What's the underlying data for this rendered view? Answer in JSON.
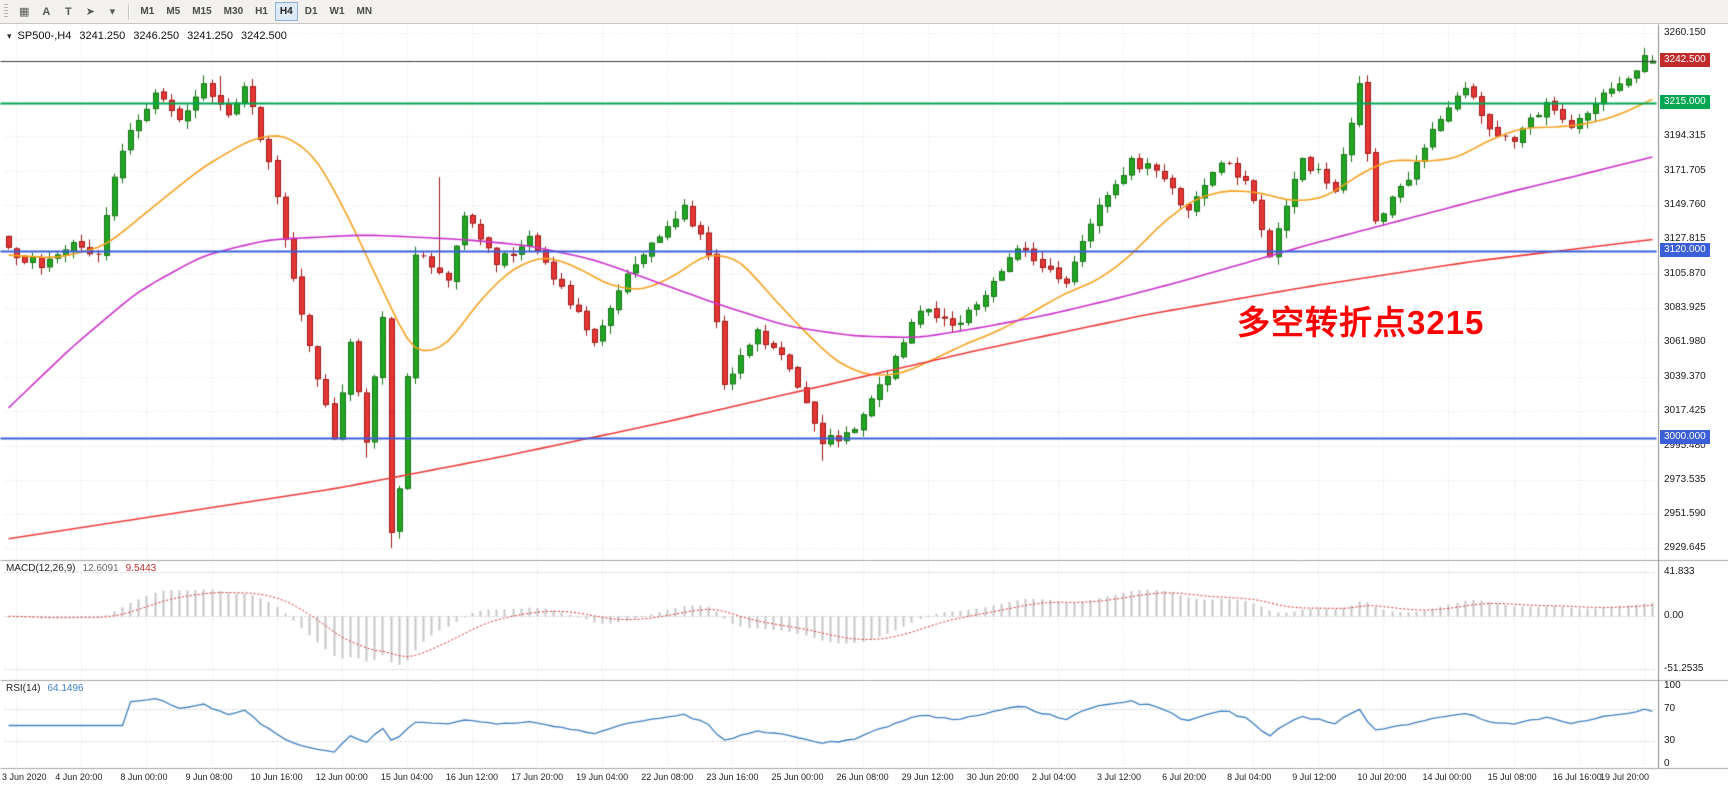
{
  "toolbar": {
    "icon_buttons": [
      {
        "name": "chart-grid-icon",
        "glyph": "▦"
      },
      {
        "name": "text-a-button",
        "glyph": "A"
      },
      {
        "name": "text-t-button",
        "glyph": "T"
      },
      {
        "name": "cursor-tool-icon",
        "glyph": "➤"
      },
      {
        "name": "tools-caret-icon",
        "glyph": "▾"
      }
    ],
    "timeframes": [
      {
        "label": "M1",
        "selected": false
      },
      {
        "label": "M5",
        "selected": false
      },
      {
        "label": "M15",
        "selected": false
      },
      {
        "label": "M30",
        "selected": false
      },
      {
        "label": "H1",
        "selected": false
      },
      {
        "label": "H4",
        "selected": true
      },
      {
        "label": "D1",
        "selected": false
      },
      {
        "label": "W1",
        "selected": false
      },
      {
        "label": "MN",
        "selected": false
      }
    ]
  },
  "chart_header": {
    "caret": "▾",
    "symbol": "SP500-,H4",
    "open": "3241.250",
    "high": "3246.250",
    "low": "3241.250",
    "close": "3242.500"
  },
  "annotation": {
    "text": "多空转折点3215",
    "color": "#FF0000"
  },
  "panes": {
    "macd": {
      "name": "MACD(12,26,9)",
      "value_main": "12.6091",
      "value_signal": "9.5443"
    },
    "rsi": {
      "name": "RSI(14)",
      "value": "64.1496"
    }
  },
  "price_axis": {
    "plain_labels": [
      {
        "text": "3260.150",
        "price": 3260.15
      },
      {
        "text": "3194.315",
        "price": 3194.315
      },
      {
        "text": "3171.705",
        "price": 3171.705
      },
      {
        "text": "3149.760",
        "price": 3149.76
      },
      {
        "text": "3127.815",
        "price": 3127.815
      },
      {
        "text": "3105.870",
        "price": 3105.87
      },
      {
        "text": "3083.925",
        "price": 3083.925
      },
      {
        "text": "3061.980",
        "price": 3061.98
      },
      {
        "text": "3039.370",
        "price": 3039.37
      },
      {
        "text": "3017.425",
        "price": 3017.425
      },
      {
        "text": "2995.480",
        "price": 2995.48
      },
      {
        "text": "2973.535",
        "price": 2973.535
      },
      {
        "text": "2951.590",
        "price": 2951.59
      },
      {
        "text": "2929.645",
        "price": 2929.645
      }
    ],
    "boxed_labels": [
      {
        "text": "3242.500",
        "price": 3242.5,
        "bg": "#C02B2B",
        "role": "current-price"
      },
      {
        "text": "3215.000",
        "price": 3215.0,
        "bg": "#00A651",
        "role": "green-level"
      },
      {
        "text": "3120.000",
        "price": 3120.0,
        "bg": "#3A5FD9",
        "role": "blue-level"
      },
      {
        "text": "3000.000",
        "price": 3000.0,
        "bg": "#3A5FD9",
        "role": "blue-level"
      }
    ]
  },
  "macd_axis": [
    {
      "text": "41.833",
      "value": 41.833
    },
    {
      "text": "0.00",
      "value": 0
    },
    {
      "text": "-51.2535",
      "value": -51.2535
    }
  ],
  "rsi_axis": [
    {
      "text": "100",
      "value": 100
    },
    {
      "text": "70",
      "value": 70
    },
    {
      "text": "30",
      "value": 30
    },
    {
      "text": "0",
      "value": 0
    }
  ],
  "date_axis": [
    "3 Jun 2020",
    "4 Jun 20:00",
    "8 Jun 00:00",
    "9 Jun 08:00",
    "10 Jun 16:00",
    "12 Jun 00:00",
    "15 Jun 04:00",
    "16 Jun 12:00",
    "17 Jun 20:00",
    "19 Jun 04:00",
    "22 Jun 08:00",
    "23 Jun 16:00",
    "25 Jun 00:00",
    "26 Jun 08:00",
    "29 Jun 12:00",
    "30 Jun 20:00",
    "2 Jul 04:00",
    "3 Jul 12:00",
    "6 Jul 20:00",
    "8 Jul 04:00",
    "9 Jul 12:00",
    "10 Jul 20:00",
    "14 Jul 00:00",
    "15 Jul 08:00",
    "16 Jul 16:00",
    "19 Jul 20:00"
  ],
  "colors": {
    "up": "#23A523",
    "up_border": "#157515",
    "down": "#E53535",
    "down_border": "#A01818",
    "ma_fast": "#F6A11F",
    "ma_medium": "#CC33CC",
    "ma_slow": "#EF3B3B",
    "level_green": "#00A651",
    "level_blue": "#3A5FD9",
    "bid_line": "#3C3C3C",
    "grid": "#E2E2E2",
    "macd_hist": "#C6C6C6",
    "macd_signal": "#E03030",
    "rsi_line": "#3E7FC1"
  },
  "chart_data": {
    "type": "candlestick",
    "symbol": "SP500-",
    "timeframe": "H4",
    "title": "SP500-,H4",
    "ohlc_current": {
      "open": 3241.25,
      "high": 3246.25,
      "low": 3241.25,
      "close": 3242.5
    },
    "price_range": [
      2922,
      3266
    ],
    "bars_total": 203,
    "seed": 7,
    "close_anchors": [
      [
        0,
        3123
      ],
      [
        4,
        3110
      ],
      [
        8,
        3126
      ],
      [
        11,
        3118
      ],
      [
        13,
        3168
      ],
      [
        15,
        3198
      ],
      [
        18,
        3222
      ],
      [
        21,
        3205
      ],
      [
        24,
        3228
      ],
      [
        27,
        3208
      ],
      [
        29,
        3226
      ],
      [
        32,
        3178
      ],
      [
        34,
        3128
      ],
      [
        37,
        3060
      ],
      [
        39,
        3022
      ],
      [
        40,
        3000
      ],
      [
        42,
        3062
      ],
      [
        44,
        2998
      ],
      [
        46,
        3078
      ],
      [
        47,
        2940
      ],
      [
        48,
        2968
      ],
      [
        50,
        3118
      ],
      [
        54,
        3102
      ],
      [
        56,
        3143
      ],
      [
        60,
        3112
      ],
      [
        64,
        3130
      ],
      [
        68,
        3098
      ],
      [
        72,
        3062
      ],
      [
        75,
        3095
      ],
      [
        78,
        3118
      ],
      [
        83,
        3150
      ],
      [
        86,
        3118
      ],
      [
        88,
        3035
      ],
      [
        92,
        3070
      ],
      [
        96,
        3045
      ],
      [
        100,
        2997
      ],
      [
        104,
        3006
      ],
      [
        108,
        3040
      ],
      [
        112,
        3082
      ],
      [
        116,
        3073
      ],
      [
        120,
        3092
      ],
      [
        124,
        3122
      ],
      [
        127,
        3110
      ],
      [
        130,
        3100
      ],
      [
        134,
        3150
      ],
      [
        138,
        3180
      ],
      [
        142,
        3167
      ],
      [
        145,
        3147
      ],
      [
        149,
        3177
      ],
      [
        152,
        3166
      ],
      [
        155,
        3117
      ],
      [
        159,
        3180
      ],
      [
        163,
        3159
      ],
      [
        166,
        3228
      ],
      [
        168,
        3140
      ],
      [
        172,
        3166
      ],
      [
        176,
        3205
      ],
      [
        179,
        3225
      ],
      [
        182,
        3199
      ],
      [
        185,
        3191
      ],
      [
        189,
        3216
      ],
      [
        192,
        3200
      ],
      [
        196,
        3222
      ],
      [
        199,
        3231
      ],
      [
        201,
        3246
      ],
      [
        202,
        3242.5
      ]
    ],
    "spikes": [
      {
        "bar": 26,
        "high": 3233
      },
      {
        "bar": 44,
        "low": 2988
      },
      {
        "bar": 47,
        "low": 2930
      },
      {
        "bar": 53,
        "high": 3168
      },
      {
        "bar": 100,
        "low": 2986
      },
      {
        "bar": 166,
        "high": 3233
      },
      {
        "bar": 201,
        "high": 3251
      }
    ],
    "levels": {
      "green_resistance": 3215.0,
      "blue_supports": [
        3120.0,
        3000.0
      ],
      "bid_line": 3242.5
    },
    "moving_averages": [
      {
        "name": "ma-fast-orange",
        "anchors": [
          [
            0,
            3118
          ],
          [
            6,
            3116
          ],
          [
            12,
            3124
          ],
          [
            18,
            3150
          ],
          [
            24,
            3175
          ],
          [
            30,
            3193
          ],
          [
            34,
            3196
          ],
          [
            38,
            3180
          ],
          [
            42,
            3140
          ],
          [
            46,
            3095
          ],
          [
            50,
            3052
          ],
          [
            54,
            3060
          ],
          [
            58,
            3090
          ],
          [
            62,
            3110
          ],
          [
            66,
            3118
          ],
          [
            70,
            3110
          ],
          [
            74,
            3098
          ],
          [
            78,
            3095
          ],
          [
            82,
            3105
          ],
          [
            86,
            3120
          ],
          [
            90,
            3115
          ],
          [
            94,
            3090
          ],
          [
            98,
            3068
          ],
          [
            102,
            3048
          ],
          [
            106,
            3040
          ],
          [
            110,
            3042
          ],
          [
            114,
            3052
          ],
          [
            118,
            3062
          ],
          [
            122,
            3070
          ],
          [
            126,
            3082
          ],
          [
            130,
            3094
          ],
          [
            134,
            3102
          ],
          [
            138,
            3118
          ],
          [
            142,
            3140
          ],
          [
            146,
            3155
          ],
          [
            150,
            3160
          ],
          [
            154,
            3158
          ],
          [
            158,
            3152
          ],
          [
            162,
            3155
          ],
          [
            166,
            3170
          ],
          [
            170,
            3180
          ],
          [
            174,
            3178
          ],
          [
            178,
            3180
          ],
          [
            182,
            3192
          ],
          [
            186,
            3200
          ],
          [
            190,
            3200
          ],
          [
            194,
            3202
          ],
          [
            198,
            3208
          ],
          [
            202,
            3218
          ]
        ]
      },
      {
        "name": "ma-medium-magenta",
        "anchors": [
          [
            0,
            3020
          ],
          [
            8,
            3060
          ],
          [
            16,
            3095
          ],
          [
            24,
            3118
          ],
          [
            32,
            3128
          ],
          [
            44,
            3131
          ],
          [
            56,
            3128
          ],
          [
            64,
            3124
          ],
          [
            72,
            3115
          ],
          [
            80,
            3100
          ],
          [
            88,
            3085
          ],
          [
            96,
            3072
          ],
          [
            104,
            3066
          ],
          [
            112,
            3065
          ],
          [
            120,
            3072
          ],
          [
            128,
            3080
          ],
          [
            136,
            3090
          ],
          [
            144,
            3101
          ],
          [
            152,
            3113
          ],
          [
            160,
            3125
          ],
          [
            168,
            3136
          ],
          [
            176,
            3147
          ],
          [
            184,
            3158
          ],
          [
            192,
            3168
          ],
          [
            202,
            3181
          ]
        ]
      },
      {
        "name": "ma-slow-red",
        "anchors": [
          [
            0,
            2936
          ],
          [
            20,
            2952
          ],
          [
            40,
            2968
          ],
          [
            60,
            2988
          ],
          [
            80,
            3010
          ],
          [
            100,
            3034
          ],
          [
            120,
            3058
          ],
          [
            140,
            3080
          ],
          [
            160,
            3098
          ],
          [
            180,
            3114
          ],
          [
            202,
            3128
          ]
        ]
      }
    ],
    "indicators": {
      "macd": {
        "params": "12,26,9",
        "current_main": 12.6091,
        "current_signal": 9.5443,
        "scale_labels": [
          41.833,
          0,
          -51.2535
        ]
      },
      "rsi": {
        "params": "14",
        "current": 64.1496,
        "levels": [
          70,
          30
        ]
      }
    },
    "x_ticks": {
      "first_bar": 1,
      "step": 8
    }
  }
}
